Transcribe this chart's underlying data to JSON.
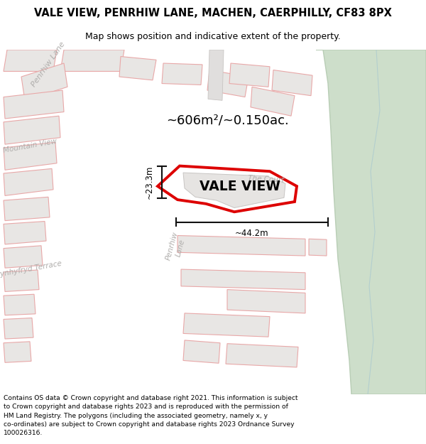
{
  "title": "VALE VIEW, PENRHIW LANE, MACHEN, CAERPHILLY, CF83 8PX",
  "subtitle": "Map shows position and indicative extent of the property.",
  "footer": "Contains OS data © Crown copyright and database right 2021. This information is subject\nto Crown copyright and database rights 2023 and is reproduced with the permission of\nHM Land Registry. The polygons (including the associated geometry, namely x, y\nco-ordinates) are subject to Crown copyright and database rights 2023 Ordnance Survey\n100026316.",
  "map_bg": "#f7f5f3",
  "green_color": "#cddeca",
  "green_edge": "#b8cdb5",
  "building_face": "#e8e6e4",
  "building_edge": "#e8a8a8",
  "road_color": "#ffffff",
  "plot_outline_color": "#dd0000",
  "dim_line_color": "#111111",
  "street_label_color": "#b0aeac",
  "area_text": "~606m²/~0.150ac.",
  "vale_view_label": "VALE VIEW",
  "dim_width": "~44.2m",
  "dim_height": "~23.3m"
}
